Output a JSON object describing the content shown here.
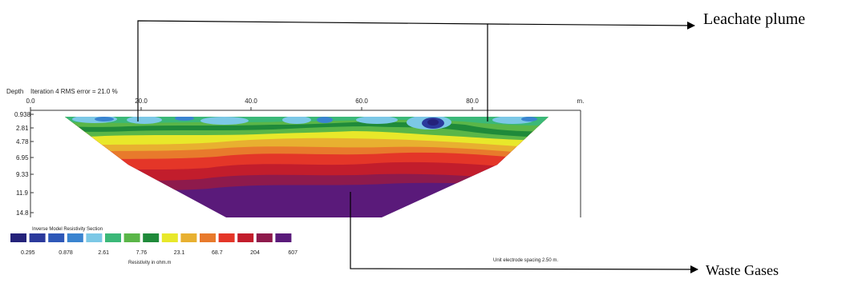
{
  "header": {
    "depth_label": "Depth",
    "iteration_label": "Iteration 4 RMS error = 21.0 %",
    "unit_m": "m."
  },
  "x_axis": {
    "ticks": [
      "0.0",
      "20.0",
      "40.0",
      "60.0",
      "80.0"
    ]
  },
  "depth_axis": {
    "ticks": [
      "0.938",
      "2.81",
      "4.78",
      "6.95",
      "9.33",
      "11.9",
      "14.8"
    ]
  },
  "annotations": {
    "leachate": "Leachate plume",
    "waste": "Waste Gases"
  },
  "legend": {
    "title": "Inverse Model Resistivity Section",
    "colors": [
      "#24227a",
      "#2b3a9c",
      "#2e58b8",
      "#3a84d0",
      "#7cc8e6",
      "#3bb878",
      "#5ab648",
      "#1f8a3a",
      "#e8e82a",
      "#e8b030",
      "#e87a2c",
      "#e43628",
      "#c21d2c",
      "#8e1a4c",
      "#5a1a7a"
    ],
    "values": [
      "0.295",
      "0.878",
      "2.61",
      "7.76",
      "23.1",
      "68.7",
      "204",
      "607"
    ],
    "unit": "Resistivity in ohm.m"
  },
  "footer": {
    "spacing": "Unit electrode spacing 2.50 m."
  }
}
